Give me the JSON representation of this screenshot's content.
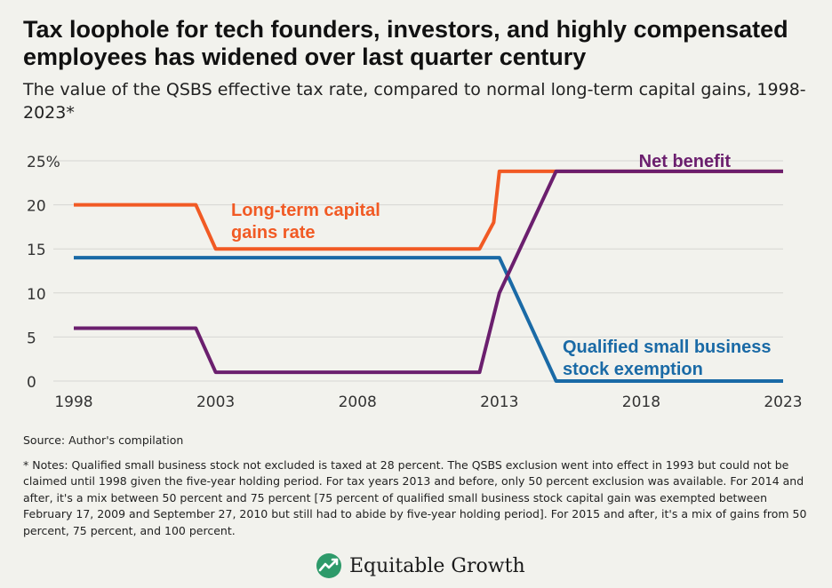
{
  "header": {
    "title": "Tax loophole for tech founders, investors, and highly compensated employees has widened over last quarter century",
    "subtitle": "The value of the QSBS effective tax rate, compared to normal long-term capital gains, 1998-2023*"
  },
  "chart_data": {
    "type": "line",
    "xlim": [
      1998,
      2023
    ],
    "ylim": [
      0,
      25
    ],
    "x_ticks": [
      {
        "value": 1998,
        "label": "1998"
      },
      {
        "value": 2003,
        "label": "2003"
      },
      {
        "value": 2008,
        "label": "2008"
      },
      {
        "value": 2013,
        "label": "2013"
      },
      {
        "value": 2018,
        "label": "2018"
      },
      {
        "value": 2023,
        "label": "2023"
      }
    ],
    "y_ticks": [
      {
        "value": 0,
        "label": "0"
      },
      {
        "value": 5,
        "label": "5"
      },
      {
        "value": 10,
        "label": "10"
      },
      {
        "value": 15,
        "label": "15"
      },
      {
        "value": 20,
        "label": "20"
      },
      {
        "value": 25,
        "label": "25%"
      }
    ],
    "grid": true,
    "series": [
      {
        "name": "Long-term capital gains rate",
        "label_lines": [
          "Long-term capital",
          "gains rate"
        ],
        "color": "#f15a24",
        "points": [
          [
            1998,
            20
          ],
          [
            2000,
            20
          ],
          [
            2000,
            20
          ],
          [
            2002.3,
            20
          ],
          [
            2003,
            15
          ],
          [
            2012.3,
            15
          ],
          [
            2012.8,
            18
          ],
          [
            2013,
            23.8
          ],
          [
            2023,
            23.8
          ]
        ]
      },
      {
        "name": "Qualified small business stock exemption",
        "label_lines": [
          "Qualified small business",
          "stock exemption"
        ],
        "color": "#1a6aa6",
        "points": [
          [
            1998,
            14
          ],
          [
            2013,
            14
          ],
          [
            2015,
            0
          ],
          [
            2023,
            0
          ]
        ]
      },
      {
        "name": "Net benefit",
        "label_lines": [
          "Net benefit"
        ],
        "color": "#6b1f6e",
        "points": [
          [
            1998,
            6
          ],
          [
            2002.3,
            6
          ],
          [
            2003,
            1
          ],
          [
            2012.3,
            1
          ],
          [
            2013,
            10
          ],
          [
            2015,
            23.8
          ],
          [
            2023,
            23.8
          ]
        ]
      }
    ]
  },
  "footer": {
    "source": "Source: Author's compilation",
    "notes": "* Notes: Qualified small business stock not excluded is taxed at 28 percent. The QSBS exclusion went into effect in 1993 but could not be claimed until 1998 given the five-year holding period. For tax years 2013 and before, only 50 percent exclusion was available. For 2014 and after, it's a mix between 50 percent and 75 percent [75 percent of qualified small business stock capital gain was exempted between February 17, 2009 and September 27, 2010 but still had to abide by five-year holding period]. For 2015 and after, it's a mix of gains from 50 percent, 75 percent, and 100 percent.",
    "logo_text": "Equitable Growth",
    "logo_color": "#2e9a6a"
  }
}
